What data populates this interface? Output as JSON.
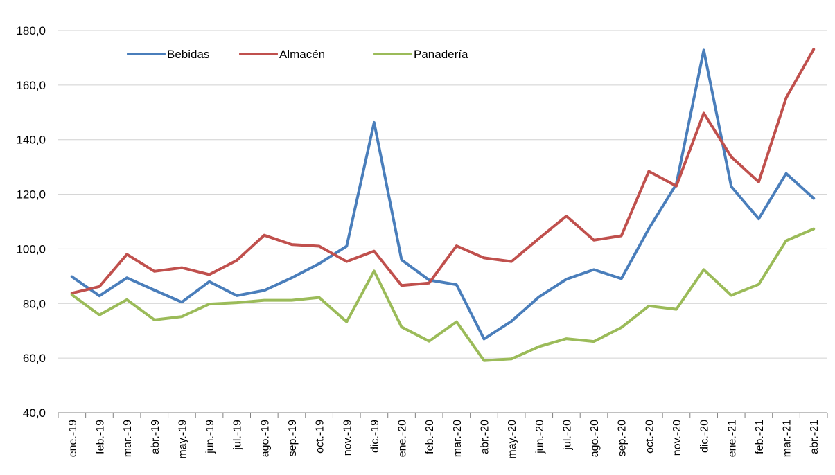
{
  "chart_data": {
    "type": "line",
    "title": "",
    "xlabel": "",
    "ylabel": "",
    "ylim": [
      40,
      180
    ],
    "yticks": [
      "40,0",
      "60,0",
      "80,0",
      "100,0",
      "120,0",
      "140,0",
      "160,0",
      "180,0"
    ],
    "grid": true,
    "legend_position": "top-left",
    "categories": [
      "ene.-19",
      "feb.-19",
      "mar.-19",
      "abr.-19",
      "may.-19",
      "jun.-19",
      "jul.-19",
      "ago.-19",
      "sep.-19",
      "oct.-19",
      "nov.-19",
      "dic.-19",
      "ene.-20",
      "feb.-20",
      "mar.-20",
      "abr.-20",
      "may.-20",
      "jun.-20",
      "jul.-20",
      "ago.-20",
      "sep.-20",
      "oct.-20",
      "nov.-20",
      "dic.-20",
      "ene.-21",
      "feb.-21",
      "mar.-21",
      "abr.-21"
    ],
    "series": [
      {
        "name": "Bebidas",
        "color": "#4a7ebb",
        "values": [
          89.8,
          82.8,
          89.4,
          84.9,
          80.5,
          88.0,
          82.9,
          84.8,
          89.4,
          94.6,
          101.0,
          146.3,
          96.0,
          88.6,
          86.9,
          67.0,
          73.5,
          82.4,
          88.9,
          92.4,
          89.1,
          107.4,
          123.7,
          172.8,
          122.8,
          111.0,
          127.6,
          118.5
        ]
      },
      {
        "name": "Almacén",
        "color": "#c0504d",
        "values": [
          83.8,
          86.2,
          98.0,
          91.8,
          93.1,
          90.6,
          95.8,
          105.0,
          101.6,
          101.0,
          95.4,
          99.2,
          86.6,
          87.5,
          101.1,
          96.7,
          95.4,
          103.8,
          112.0,
          103.2,
          104.8,
          128.4,
          123.0,
          149.7,
          133.7,
          124.5,
          155.3,
          173.1
        ]
      },
      {
        "name": "Panadería",
        "color": "#9bbb59",
        "values": [
          83.2,
          75.8,
          81.4,
          74.0,
          75.2,
          79.8,
          80.3,
          81.2,
          81.2,
          82.2,
          73.3,
          91.9,
          71.4,
          66.2,
          73.3,
          59.1,
          59.7,
          64.2,
          67.1,
          66.1,
          71.2,
          79.1,
          77.9,
          92.4,
          83.0,
          87.0,
          103.0,
          107.3
        ]
      }
    ]
  }
}
